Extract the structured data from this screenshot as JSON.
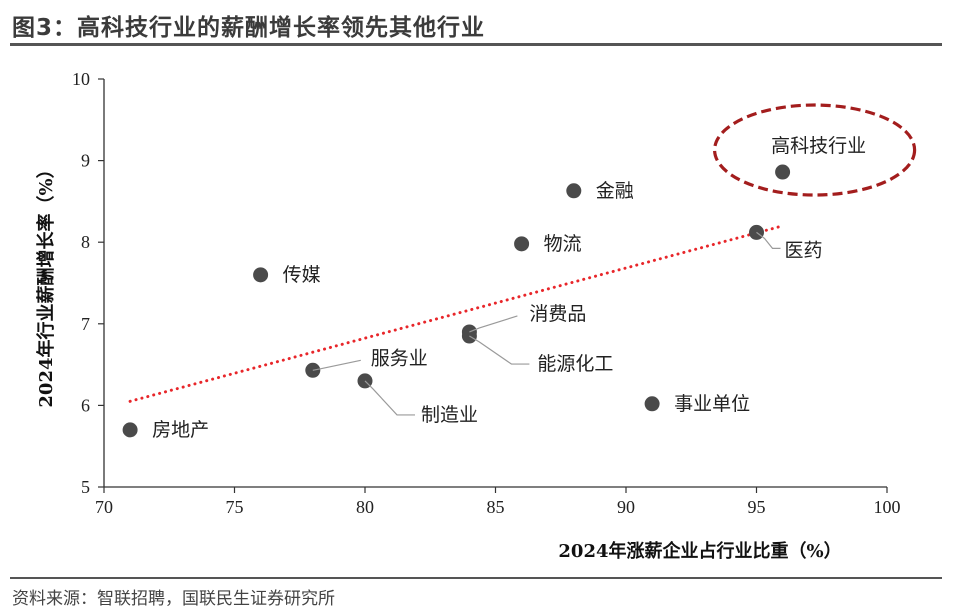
{
  "header": {
    "title": "图3：高科技行业的薪酬增长率领先其他行业"
  },
  "footer": {
    "source": "资料来源：智联招聘，国联民生证券研究所"
  },
  "chart_data": {
    "type": "scatter",
    "xlabel": "2024年涨薪企业占行业比重（%）",
    "ylabel": "2024年行业薪酬增长率（%）",
    "xlim": [
      70,
      100
    ],
    "ylim": [
      5,
      10
    ],
    "xticks": [
      "70",
      "75",
      "80",
      "85",
      "90",
      "95",
      "100"
    ],
    "yticks": [
      "5",
      "6",
      "7",
      "8",
      "9",
      "10"
    ],
    "grid": false,
    "points": [
      {
        "label": "房地产",
        "x": 71.0,
        "y": 5.7
      },
      {
        "label": "传媒",
        "x": 76.0,
        "y": 7.6
      },
      {
        "label": "服务业",
        "x": 78.0,
        "y": 6.43
      },
      {
        "label": "制造业",
        "x": 80.0,
        "y": 6.3
      },
      {
        "label": "消费品",
        "x": 84.0,
        "y": 6.9
      },
      {
        "label": "能源化工",
        "x": 84.0,
        "y": 6.85
      },
      {
        "label": "物流",
        "x": 86.0,
        "y": 7.98
      },
      {
        "label": "金融",
        "x": 88.0,
        "y": 8.63
      },
      {
        "label": "事业单位",
        "x": 91.0,
        "y": 6.02
      },
      {
        "label": "医药",
        "x": 95.0,
        "y": 8.12
      },
      {
        "label": "高科技行业",
        "x": 96.0,
        "y": 8.86
      }
    ],
    "trendline": {
      "style": "dotted",
      "color": "#e8262a",
      "x": [
        71,
        96
      ],
      "y": [
        6.05,
        8.2
      ]
    },
    "highlight": {
      "target": "高科技行业",
      "shape": "dashed-ellipse",
      "color": "#a31d1d"
    },
    "colors": {
      "marker": "#4a4a4a",
      "axis": "#333333",
      "leader": "#9a9a9a"
    }
  }
}
